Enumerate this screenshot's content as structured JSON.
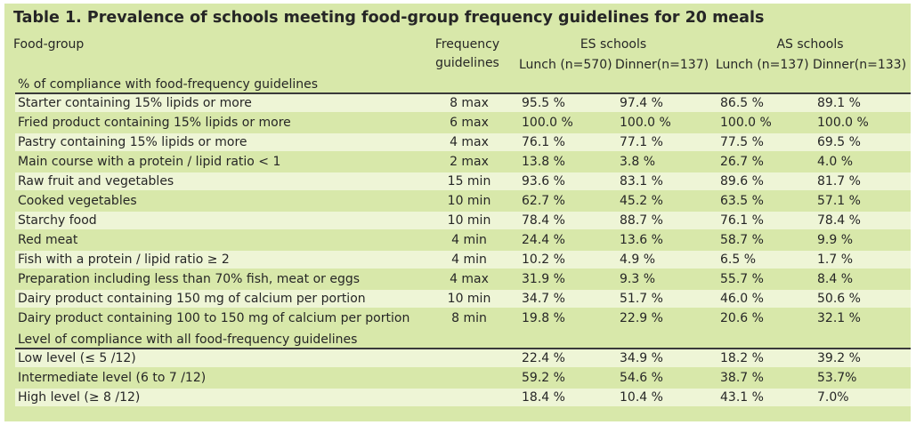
{
  "title": "Table 1. Prevalence of schools meeting food-group frequency guidelines for 20 meals",
  "header": {
    "food_group": "Food-group",
    "frequency_line1": "Frequency",
    "frequency_line2": "guidelines",
    "es_schools": "ES schools",
    "as_schools": "AS schools",
    "es_lunch": "Lunch (n=570)",
    "es_dinner": "Dinner(n=137)",
    "as_lunch": "Lunch (n=137)",
    "as_dinner": "Dinner(n=133)"
  },
  "section1": "% of compliance with food-frequency guidelines",
  "rows1": [
    {
      "label": "Starter containing 15% lipids or more",
      "guide": "8 max",
      "v": [
        "95.5 %",
        "97.4 %",
        "86.5 %",
        "89.1 %"
      ]
    },
    {
      "label": "Fried product containing 15% lipids or more",
      "guide": "6 max",
      "v": [
        "100.0 %",
        "100.0 %",
        "100.0 %",
        "100.0 %"
      ]
    },
    {
      "label": "Pastry containing 15% lipids or more",
      "guide": "4 max",
      "v": [
        "76.1 %",
        "77.1 %",
        "77.5 %",
        "69.5 %"
      ]
    },
    {
      "label": "Main course with a protein / lipid ratio < 1",
      "guide": "2 max",
      "v": [
        "13.8 %",
        "3.8 %",
        "26.7 %",
        "4.0 %"
      ]
    },
    {
      "label": "Raw fruit and vegetables",
      "guide": "15 min",
      "v": [
        "93.6 %",
        "83.1 %",
        "89.6 %",
        "81.7 %"
      ]
    },
    {
      "label": "Cooked vegetables",
      "guide": "10 min",
      "v": [
        "62.7 %",
        "45.2 %",
        "63.5 %",
        "57.1 %"
      ]
    },
    {
      "label": "Starchy food",
      "guide": "10 min",
      "v": [
        "78.4 %",
        "88.7 %",
        "76.1 %",
        "78.4 %"
      ]
    },
    {
      "label": "Red meat",
      "guide": "4 min",
      "v": [
        "24.4 %",
        "13.6 %",
        "58.7 %",
        "9.9 %"
      ]
    },
    {
      "label": "Fish with a protein / lipid  ratio ≥ 2",
      "guide": "4 min",
      "v": [
        "10.2 %",
        "4.9 %",
        "6.5 %",
        "1.7 %"
      ]
    },
    {
      "label": "Preparation including less than 70%  fish, meat or eggs",
      "guide": "4 max",
      "v": [
        "31.9 %",
        "9.3 %",
        "55.7 %",
        "8.4 %"
      ]
    },
    {
      "label": "Dairy product containing 150 mg of calcium per portion",
      "guide": "10 min",
      "v": [
        "34.7 %",
        "51.7 %",
        "46.0 %",
        "50.6 %"
      ]
    },
    {
      "label": "Dairy product containing 100 to 150 mg of calcium per portion",
      "guide": "8 min",
      "v": [
        "19.8 %",
        "22.9 %",
        "20.6 %",
        "32.1 %"
      ]
    }
  ],
  "section2": "Level of compliance with all food-frequency guidelines",
  "rows2": [
    {
      "label": "Low level (≤ 5 /12)",
      "guide": "",
      "v": [
        "22.4 %",
        "34.9 %",
        "18.2 %",
        "39.2 %"
      ]
    },
    {
      "label": "Intermediate level (6 to 7 /12)",
      "guide": "",
      "v": [
        "59.2 %",
        "54.6 %",
        "38.7 %",
        "53.7%"
      ]
    },
    {
      "label": "High level (≥ 8 /12)",
      "guide": "",
      "v": [
        "18.4 %",
        "10.4 %",
        "43.1 %",
        "7.0%"
      ]
    }
  ]
}
